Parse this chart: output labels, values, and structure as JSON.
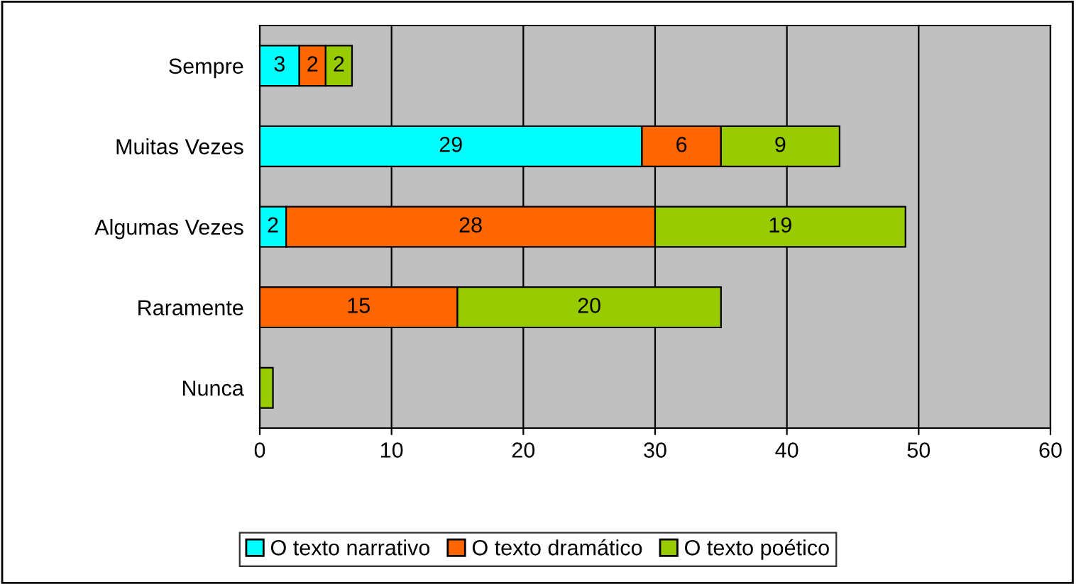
{
  "chart_data": {
    "type": "bar",
    "orientation": "horizontal",
    "stacked": true,
    "categories": [
      "Sempre",
      "Muitas Vezes",
      "Algumas Vezes",
      "Raramente",
      "Nunca"
    ],
    "series": [
      {
        "name": "O texto narrativo",
        "color": "#00ffff",
        "values": [
          3,
          29,
          2,
          null,
          null
        ],
        "value_labels": [
          "3",
          "29",
          "2",
          null,
          null
        ]
      },
      {
        "name": "O texto dramático",
        "color": "#ff6600",
        "values": [
          2,
          6,
          28,
          15,
          null
        ],
        "value_labels": [
          "2",
          "6",
          "28",
          "15",
          null
        ]
      },
      {
        "name": "O texto poético",
        "color": "#99cc00",
        "values": [
          2,
          9,
          19,
          20,
          1
        ],
        "value_labels": [
          "2",
          "9",
          "19",
          "20",
          null
        ]
      }
    ],
    "xlim": [
      0,
      60
    ],
    "xticks": [
      0,
      10,
      20,
      30,
      40,
      50,
      60
    ],
    "grid": "x",
    "legend": "bottom"
  }
}
